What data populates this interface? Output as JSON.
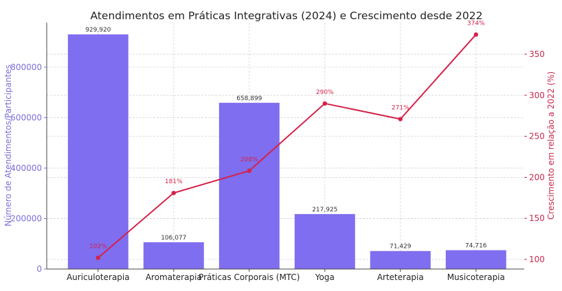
{
  "chart_data": {
    "type": "bar+line",
    "title": "Atendimentos em Práticas Integrativas (2024) e Crescimento desde 2022",
    "categories": [
      "Auriculoterapia",
      "Aromaterapia",
      "Práticas Corporais (MTC)",
      "Yoga",
      "Arteterapia",
      "Musicoterapia"
    ],
    "series": [
      {
        "name": "Atendimentos/Participantes",
        "type": "bar",
        "axis": "left",
        "values": [
          929920,
          106077,
          658899,
          217925,
          71429,
          74716
        ],
        "labels": [
          "929,920",
          "106,077",
          "658,899",
          "217,925",
          "71,429",
          "74,716"
        ],
        "color": "#7866ee"
      },
      {
        "name": "Crescimento (%)",
        "type": "line",
        "axis": "right",
        "values": [
          102,
          181,
          208,
          290,
          271,
          374
        ],
        "labels": [
          "102%",
          "181%",
          "208%",
          "290%",
          "271%",
          "374%"
        ],
        "color": "#d42249"
      }
    ],
    "ylabel": "Número de Atendimentos/Participantes",
    "y2label": "Crescimento em relação a 2022 (%)",
    "ylim": [
      0,
      976500
    ],
    "y2lim": [
      88.3,
      388.5
    ],
    "yticks": [
      0,
      200000,
      400000,
      600000,
      800000
    ],
    "y2ticks": [
      100,
      150,
      200,
      250,
      300,
      350
    ],
    "ylabel_color": "#7b6fd6",
    "y2label_color": "#c8284e",
    "grid": true
  }
}
